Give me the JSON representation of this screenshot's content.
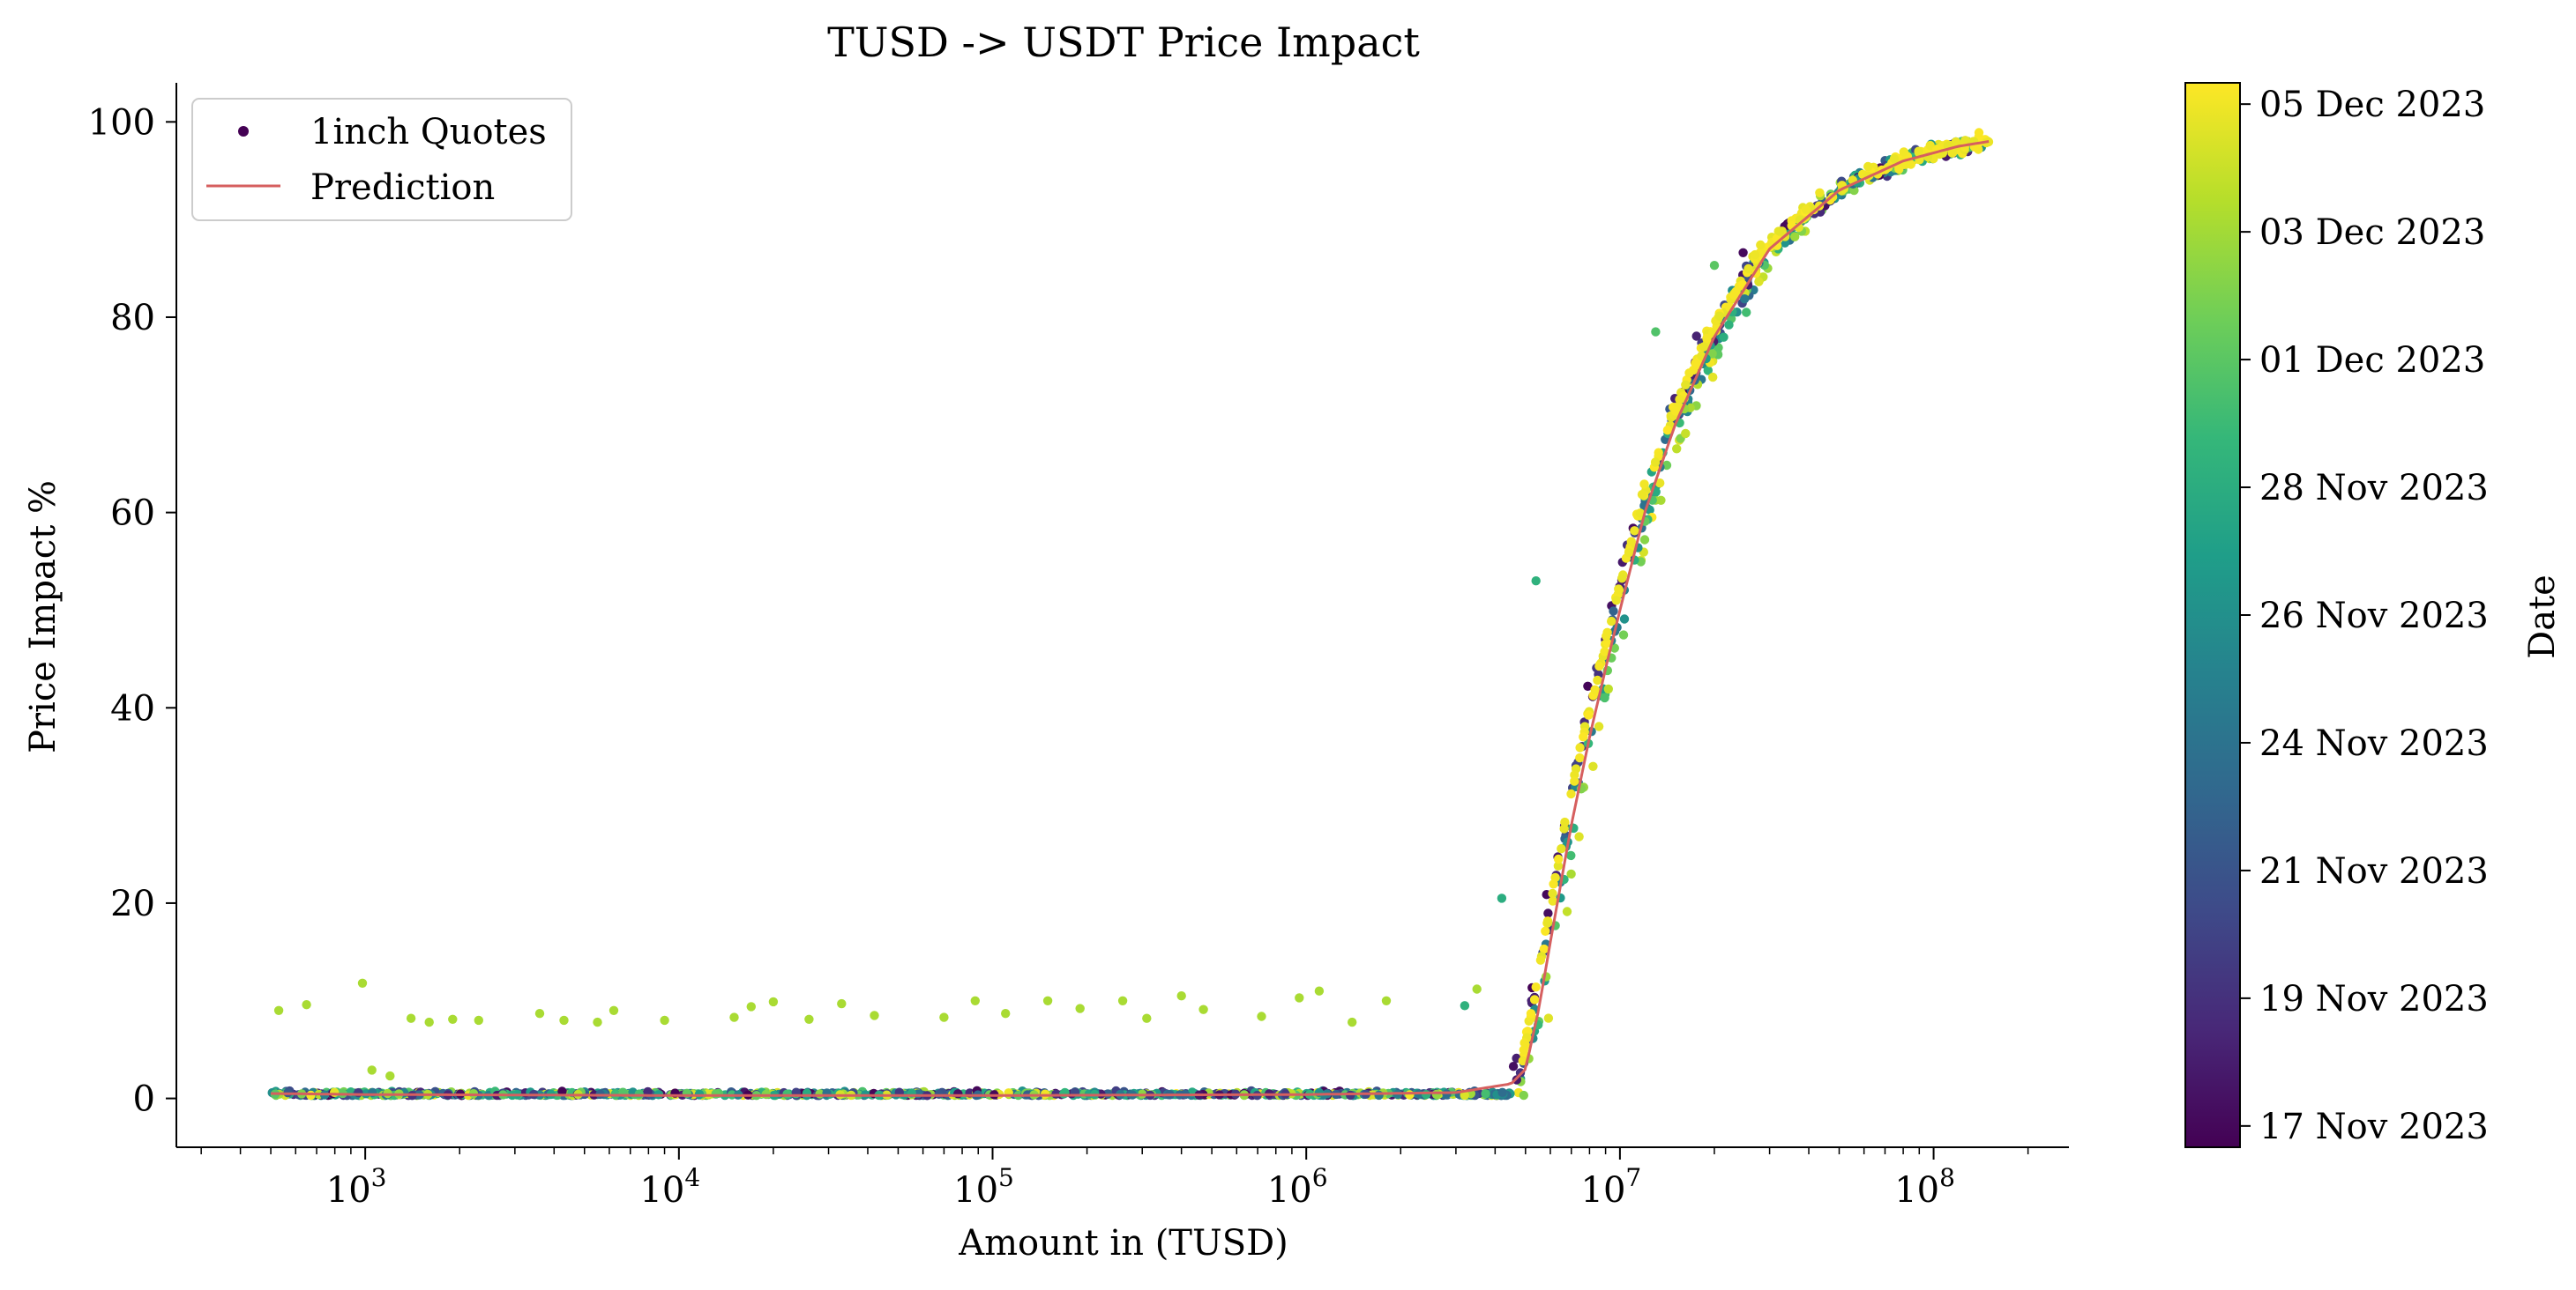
{
  "chart_data": {
    "type": "scatter",
    "title": "TUSD -> USDT Price Impact",
    "xlabel": "Amount in (TUSD)",
    "ylabel": "Price Impact %",
    "xscale": "log",
    "xlim": [
      250,
      270000000
    ],
    "ylim": [
      -5,
      104
    ],
    "x_ticks": [
      {
        "base": "10",
        "exp": "3",
        "value": 1000
      },
      {
        "base": "10",
        "exp": "4",
        "value": 10000
      },
      {
        "base": "10",
        "exp": "5",
        "value": 100000
      },
      {
        "base": "10",
        "exp": "6",
        "value": 1000000
      },
      {
        "base": "10",
        "exp": "7",
        "value": 10000000
      },
      {
        "base": "10",
        "exp": "8",
        "value": 100000000
      }
    ],
    "y_ticks": [
      {
        "label": "0",
        "value": 0
      },
      {
        "label": "20",
        "value": 20
      },
      {
        "label": "40",
        "value": 40
      },
      {
        "label": "60",
        "value": 60
      },
      {
        "label": "80",
        "value": 80
      },
      {
        "label": "100",
        "value": 100
      }
    ],
    "grid": false,
    "legend": {
      "placement": "top-left",
      "entries": [
        {
          "label": "1inch Quotes",
          "kind": "marker",
          "color": "#440154"
        },
        {
          "label": "Prediction",
          "kind": "line",
          "color": "#d65f5f"
        }
      ]
    },
    "colorbar": {
      "label": "Date",
      "colormap": [
        "#440154",
        "#482878",
        "#3e4a89",
        "#31688e",
        "#26828e",
        "#1f9e89",
        "#35b779",
        "#6ece58",
        "#b5de2b",
        "#fde725"
      ],
      "ticks": [
        {
          "label": "17 Nov 2023",
          "pos": 0.02
        },
        {
          "label": "19 Nov 2023",
          "pos": 0.14
        },
        {
          "label": "21 Nov 2023",
          "pos": 0.26
        },
        {
          "label": "24 Nov 2023",
          "pos": 0.38
        },
        {
          "label": "26 Nov 2023",
          "pos": 0.5
        },
        {
          "label": "28 Nov 2023",
          "pos": 0.62
        },
        {
          "label": "01 Dec 2023",
          "pos": 0.74
        },
        {
          "label": "03 Dec 2023",
          "pos": 0.86
        },
        {
          "label": "05 Dec 2023",
          "pos": 0.98
        }
      ]
    },
    "prediction": {
      "name": "Prediction",
      "color": "#d65f5f",
      "x": [
        500,
        1000,
        10000,
        100000,
        1000000,
        3000000,
        4500000,
        5000000,
        5500000,
        6000000,
        7000000,
        8000000,
        9000000,
        10000000,
        12000000,
        15000000,
        20000000,
        30000000,
        50000000,
        80000000,
        120000000,
        150000000
      ],
      "y": [
        0.5,
        0.4,
        0.3,
        0.3,
        0.4,
        0.6,
        1.5,
        3,
        9,
        16,
        28,
        37,
        44,
        50,
        60,
        69,
        78,
        87,
        93,
        96,
        97.5,
        98
      ]
    },
    "scatter_main": {
      "series_name": "1inch Quotes",
      "x_range": [
        500,
        150000000
      ],
      "y_range": [
        0,
        98
      ]
    },
    "scatter_outliers": [
      {
        "x": 530,
        "y": 9.0,
        "date_pos": 0.87
      },
      {
        "x": 650,
        "y": 9.6,
        "date_pos": 0.87
      },
      {
        "x": 980,
        "y": 11.8,
        "date_pos": 0.87
      },
      {
        "x": 1400,
        "y": 8.2,
        "date_pos": 0.87
      },
      {
        "x": 1600,
        "y": 7.8,
        "date_pos": 0.87
      },
      {
        "x": 1900,
        "y": 8.1,
        "date_pos": 0.87
      },
      {
        "x": 2300,
        "y": 8.0,
        "date_pos": 0.87
      },
      {
        "x": 3600,
        "y": 8.7,
        "date_pos": 0.87
      },
      {
        "x": 4300,
        "y": 8.0,
        "date_pos": 0.87
      },
      {
        "x": 5500,
        "y": 7.8,
        "date_pos": 0.87
      },
      {
        "x": 6200,
        "y": 9.0,
        "date_pos": 0.87
      },
      {
        "x": 9000,
        "y": 8.0,
        "date_pos": 0.87
      },
      {
        "x": 15000,
        "y": 8.3,
        "date_pos": 0.87
      },
      {
        "x": 17000,
        "y": 9.4,
        "date_pos": 0.87
      },
      {
        "x": 20000,
        "y": 9.9,
        "date_pos": 0.87
      },
      {
        "x": 26000,
        "y": 8.1,
        "date_pos": 0.87
      },
      {
        "x": 33000,
        "y": 9.7,
        "date_pos": 0.87
      },
      {
        "x": 42000,
        "y": 8.5,
        "date_pos": 0.87
      },
      {
        "x": 70000,
        "y": 8.3,
        "date_pos": 0.87
      },
      {
        "x": 88000,
        "y": 10.0,
        "date_pos": 0.87
      },
      {
        "x": 110000,
        "y": 8.7,
        "date_pos": 0.87
      },
      {
        "x": 150000,
        "y": 10.0,
        "date_pos": 0.87
      },
      {
        "x": 190000,
        "y": 9.2,
        "date_pos": 0.87
      },
      {
        "x": 260000,
        "y": 10.0,
        "date_pos": 0.87
      },
      {
        "x": 310000,
        "y": 8.2,
        "date_pos": 0.87
      },
      {
        "x": 400000,
        "y": 10.5,
        "date_pos": 0.87
      },
      {
        "x": 470000,
        "y": 9.1,
        "date_pos": 0.87
      },
      {
        "x": 720000,
        "y": 8.4,
        "date_pos": 0.87
      },
      {
        "x": 950000,
        "y": 10.3,
        "date_pos": 0.87
      },
      {
        "x": 1100000,
        "y": 11.0,
        "date_pos": 0.87
      },
      {
        "x": 1400000,
        "y": 7.8,
        "date_pos": 0.87
      },
      {
        "x": 1800000,
        "y": 10.0,
        "date_pos": 0.87
      },
      {
        "x": 1050,
        "y": 2.9,
        "date_pos": 0.87
      },
      {
        "x": 1200,
        "y": 2.3,
        "date_pos": 0.87
      },
      {
        "x": 5400000,
        "y": 53.0,
        "date_pos": 0.64
      },
      {
        "x": 13000000,
        "y": 78.5,
        "date_pos": 0.72
      },
      {
        "x": 20000000,
        "y": 85.3,
        "date_pos": 0.74
      },
      {
        "x": 3200000,
        "y": 9.5,
        "date_pos": 0.64
      },
      {
        "x": 3500000,
        "y": 11.2,
        "date_pos": 0.87
      },
      {
        "x": 4200000,
        "y": 20.5,
        "date_pos": 0.62
      }
    ]
  }
}
